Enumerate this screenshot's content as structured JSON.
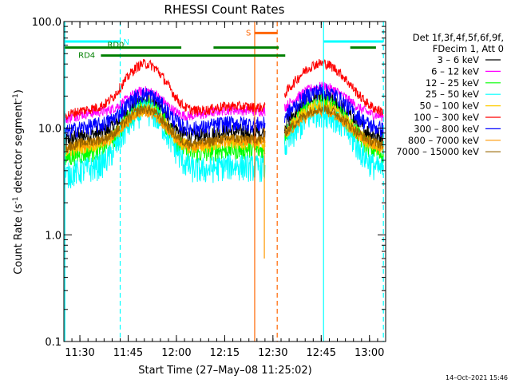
{
  "chart_data": {
    "type": "line",
    "title": "RHESSI Count Rates",
    "xlabel": "Start Time (27–May–08 11:25:02)",
    "ylabel_main": "Count Rate (s",
    "ylabel_sup1": "-1",
    "ylabel_mid": " detector segment",
    "ylabel_sup2": "-1",
    "ylabel_end": ")",
    "xlim_minutes": [
      0,
      100
    ],
    "ylim": [
      0.1,
      100
    ],
    "yscale": "log",
    "x_ticks": [
      {
        "minute": 4.97,
        "label": "11:30"
      },
      {
        "minute": 19.97,
        "label": "11:45"
      },
      {
        "minute": 34.97,
        "label": "12:00"
      },
      {
        "minute": 49.97,
        "label": "12:15"
      },
      {
        "minute": 64.97,
        "label": "12:30"
      },
      {
        "minute": 79.97,
        "label": "12:45"
      },
      {
        "minute": 94.97,
        "label": "13:00"
      }
    ],
    "y_ticks": [
      {
        "value": 0.1,
        "label": "0.1"
      },
      {
        "value": 1,
        "label": "1.0"
      },
      {
        "value": 10,
        "label": "10.0"
      },
      {
        "value": 100,
        "label": "100.0"
      }
    ],
    "legend_header": [
      "Det 1f,3f,4f,5f,6f,9f,",
      "FDecim 1, Att 0"
    ],
    "legend_position": "right",
    "series": [
      {
        "name": "3 – 6 keV",
        "color": "#000000",
        "base": 7.5,
        "peak1": 19,
        "peak2": 19,
        "noise": 0.09
      },
      {
        "name": "6 – 12 keV",
        "color": "#ff00ff",
        "base": 12,
        "peak1": 24,
        "peak2": 24,
        "noise": 0.05
      },
      {
        "name": "12 – 25 keV",
        "color": "#00ff00",
        "base": 5.2,
        "peak1": 17,
        "peak2": 17,
        "noise": 0.1
      },
      {
        "name": "25 – 50 keV",
        "color": "#00ffff",
        "base": 3.6,
        "peak1": 15,
        "peak2": 14,
        "noise": 0.13
      },
      {
        "name": "50 – 100 keV",
        "color": "#ffcc00",
        "base": 6.0,
        "peak1": 16,
        "peak2": 16,
        "noise": 0.07
      },
      {
        "name": "100 – 300 keV",
        "color": "#ff0000",
        "base": 13,
        "peak1": 42,
        "peak2": 40,
        "noise": 0.05
      },
      {
        "name": "300 – 800 keV",
        "color": "#0000ff",
        "base": 9,
        "peak1": 22,
        "peak2": 22,
        "noise": 0.08
      },
      {
        "name": "800 – 7000 keV",
        "color": "#ff9900",
        "base": 6.2,
        "peak1": 15,
        "peak2": 14,
        "noise": 0.05
      },
      {
        "name": "7000 – 15000 keV",
        "color": "#996600",
        "base": 6.5,
        "peak1": 16,
        "peak2": 15,
        "noise": 0.05
      }
    ],
    "gap_minutes": [
      62.5,
      68.6
    ],
    "peak_minutes": [
      25.5,
      80.0
    ],
    "flag_bars": [
      {
        "label": "N",
        "color": "#00ffff",
        "segments": [
          [
            0.3,
            17.5
          ],
          [
            80.7,
            99.3
          ]
        ],
        "level": 65
      },
      {
        "label": "RD0",
        "color": "#008000",
        "segments": [
          [
            0.3,
            36.5
          ],
          [
            46.5,
            66.8
          ],
          [
            89,
            97
          ]
        ],
        "level": 57
      },
      {
        "label": "RD4",
        "color": "#008000",
        "segments": [
          [
            11.5,
            68.8
          ]
        ],
        "level": 48
      },
      {
        "label": "S",
        "color": "#ff6600",
        "segments": [
          [
            59.3,
            66.3
          ]
        ],
        "level": 78
      }
    ],
    "vertical_lines": [
      {
        "minute": 0.3,
        "style": "solid",
        "color": "#00ffff"
      },
      {
        "minute": 17.5,
        "style": "dashed",
        "color": "#00ffff"
      },
      {
        "minute": 80.7,
        "style": "solid",
        "color": "#00ffff"
      },
      {
        "minute": 99.3,
        "style": "dashed",
        "color": "#00ffff"
      },
      {
        "minute": 59.3,
        "style": "solid",
        "color": "#ff6600"
      },
      {
        "minute": 66.3,
        "style": "dashed",
        "color": "#ff6600"
      }
    ],
    "footer_timestamp": "14–Oct–2021 15:46"
  }
}
